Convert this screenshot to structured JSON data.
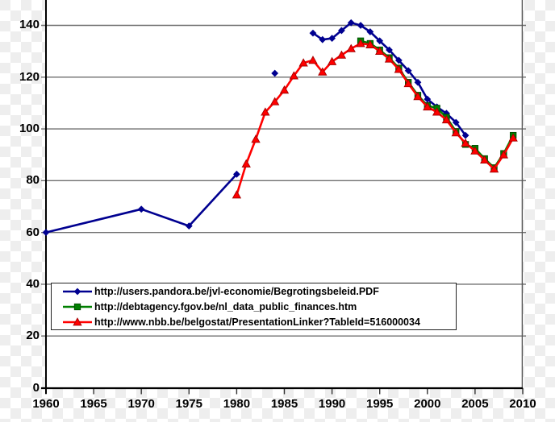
{
  "chart_data": {
    "type": "line",
    "title": "",
    "xlabel": "",
    "ylabel": "",
    "grid": "horizontal",
    "legend_position": "inside-bottom-left",
    "xlim": [
      1960,
      2010
    ],
    "ylim_visible": [
      0,
      150
    ],
    "x_ticks": [
      1960,
      1965,
      1970,
      1975,
      1980,
      1985,
      1990,
      1995,
      2000,
      2005,
      2010
    ],
    "y_ticks": [
      0,
      20,
      40,
      60,
      80,
      100,
      120,
      140
    ],
    "series": [
      {
        "name": "http://users.pandora.be/jvl-economie/Begrotingsbeleid.PDF",
        "color": "#000090",
        "marker": "diamond",
        "segments": [
          [
            [
              1960,
              60
            ],
            [
              1970,
              69
            ],
            [
              1975,
              62.5
            ],
            [
              1980,
              82.5
            ]
          ],
          [
            [
              1984,
              121.5
            ]
          ],
          [
            [
              1988,
              137
            ],
            [
              1989,
              134.5
            ],
            [
              1990,
              135
            ],
            [
              1991,
              138
            ],
            [
              1992,
              141
            ],
            [
              1993,
              140
            ],
            [
              1994,
              137.5
            ],
            [
              1995,
              134
            ],
            [
              1996,
              130.5
            ],
            [
              1997,
              126.5
            ],
            [
              1998,
              122.5
            ],
            [
              1999,
              118
            ],
            [
              2000,
              111.5
            ],
            [
              2001,
              108.5
            ],
            [
              2002,
              106
            ],
            [
              2003,
              102.5
            ],
            [
              2004,
              97.5
            ]
          ]
        ]
      },
      {
        "name": "http://debtagency.fgov.be/nl_data_public_finances.htm",
        "color": "#008000",
        "marker": "square",
        "segments": [
          [
            [
              1993,
              134
            ],
            [
              1994,
              133
            ],
            [
              1995,
              130.5
            ],
            [
              1996,
              127.5
            ],
            [
              1997,
              123.5
            ],
            [
              1998,
              118
            ],
            [
              1999,
              113
            ],
            [
              2000,
              109
            ],
            [
              2001,
              108
            ],
            [
              2002,
              104.5
            ],
            [
              2003,
              99
            ],
            [
              2004,
              94
            ],
            [
              2005,
              92.5
            ],
            [
              2006,
              88.5
            ],
            [
              2007,
              85
            ],
            [
              2008,
              90.5
            ],
            [
              2009,
              97.5
            ]
          ]
        ]
      },
      {
        "name": "http://www.nbb.be/belgostat/PresentationLinker?TableId=516000034",
        "color": "#FF0000",
        "marker": "triangle",
        "segments": [
          [
            [
              1980,
              74.5
            ],
            [
              1981,
              86.5
            ],
            [
              1982,
              96
            ],
            [
              1983,
              106.5
            ],
            [
              1984,
              110.5
            ],
            [
              1985,
              115
            ],
            [
              1986,
              120.5
            ],
            [
              1987,
              125.5
            ],
            [
              1988,
              126.5
            ],
            [
              1989,
              122
            ],
            [
              1990,
              126
            ],
            [
              1991,
              128.5
            ],
            [
              1992,
              131
            ],
            [
              1993,
              133
            ],
            [
              1994,
              132.5
            ],
            [
              1995,
              130
            ],
            [
              1996,
              127
            ],
            [
              1997,
              123
            ],
            [
              1998,
              117.5
            ],
            [
              1999,
              112.5
            ],
            [
              2000,
              108.5
            ],
            [
              2001,
              106.5
            ],
            [
              2002,
              103.5
            ],
            [
              2003,
              98.5
            ],
            [
              2004,
              94.5
            ],
            [
              2005,
              91.5
            ],
            [
              2006,
              88
            ],
            [
              2007,
              84.5
            ],
            [
              2008,
              90
            ],
            [
              2009,
              96.5
            ]
          ]
        ]
      }
    ]
  },
  "axes": {
    "y_tick_labels": [
      "0",
      "20",
      "40",
      "60",
      "80",
      "100",
      "120",
      "140"
    ],
    "x_tick_labels": [
      "1960",
      "1965",
      "1970",
      "1975",
      "1980",
      "1985",
      "1990",
      "1995",
      "2000",
      "2005",
      "2010"
    ]
  },
  "colors": {
    "gridline": "#6f6f6f",
    "axis": "#000000",
    "plot_border_right": "#555555",
    "blue_series": "#000090",
    "green_series": "#008000",
    "red_series": "#FF0000"
  }
}
